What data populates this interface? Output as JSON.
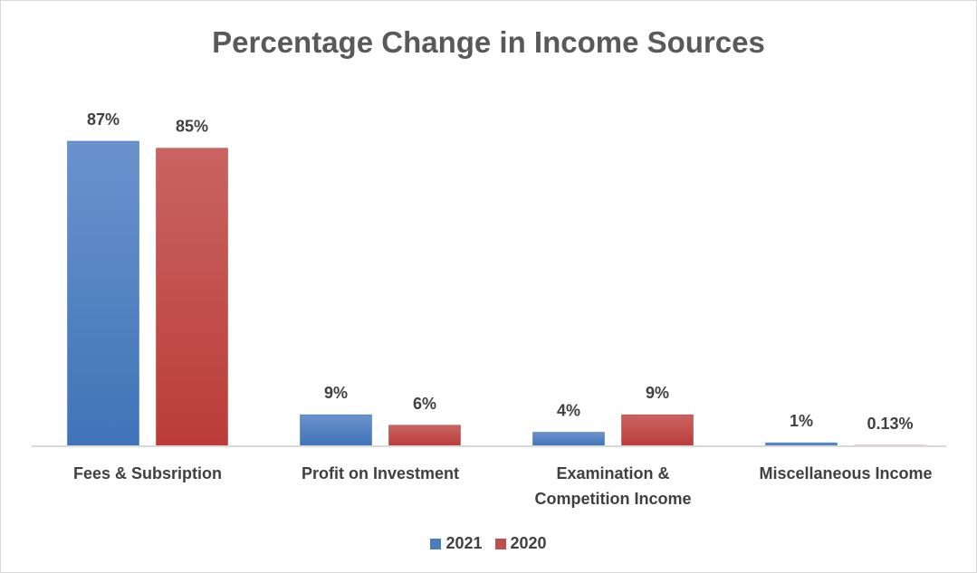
{
  "chart_data": {
    "type": "bar",
    "title": "Percentage Change in Income Sources",
    "categories": [
      [
        "Fees & Subsription"
      ],
      [
        "Profit on Investment"
      ],
      [
        "Examination &",
        "Competition Income"
      ],
      [
        "Miscellaneous Income"
      ]
    ],
    "series": [
      {
        "name": "2021",
        "color": "#4a7ebb",
        "values": [
          87,
          9,
          4,
          1
        ],
        "labels": [
          "87%",
          "9%",
          "4%",
          "1%"
        ]
      },
      {
        "name": "2020",
        "color": "#c0504d",
        "values": [
          85,
          6,
          9,
          0.13
        ],
        "labels": [
          "85%",
          "6%",
          "9%",
          "0.13%"
        ]
      }
    ],
    "ylim": [
      0,
      87
    ],
    "grid": false,
    "legend_position": "bottom"
  }
}
